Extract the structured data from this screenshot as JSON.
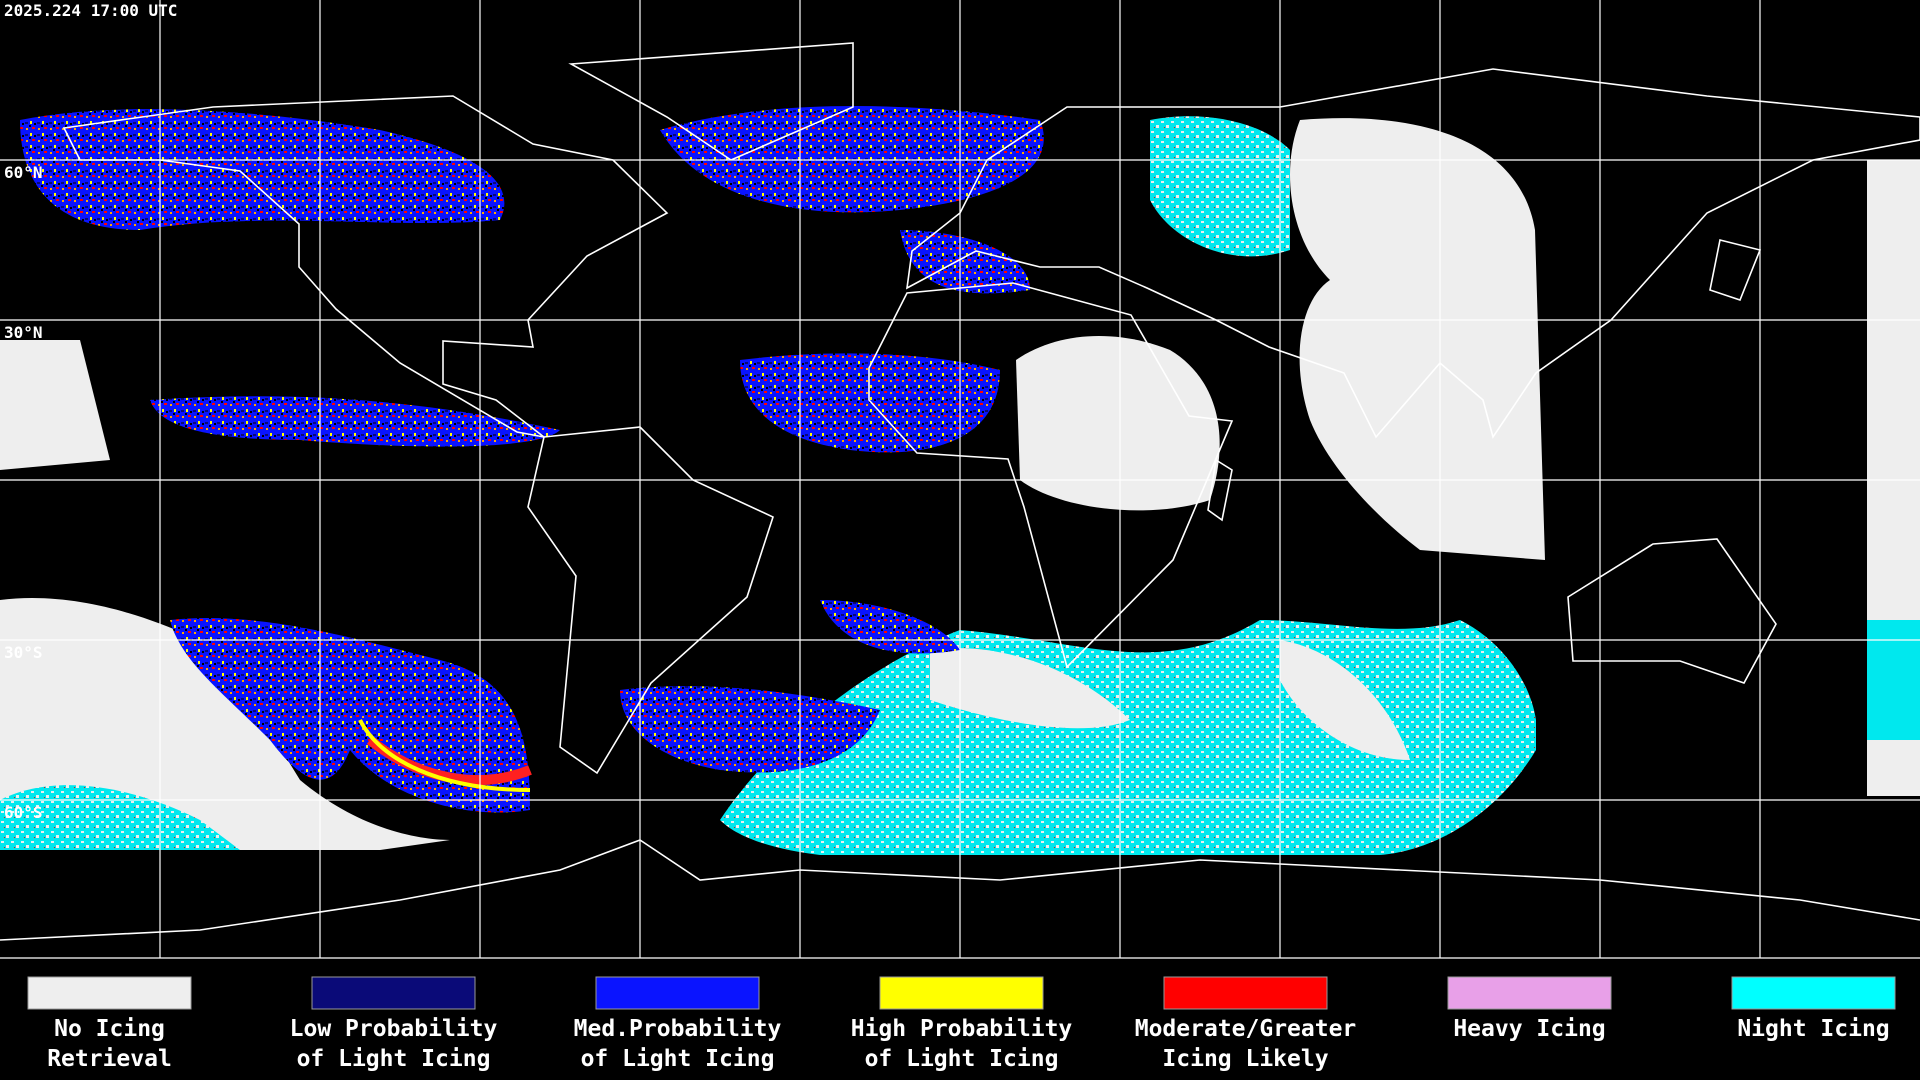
{
  "timestamp": "2025.224 17:00 UTC",
  "latitude_labels": [
    "60°N",
    "30°N",
    "30°S",
    "60°S"
  ],
  "legend": [
    {
      "label": [
        "No Icing",
        "Retrieval"
      ],
      "color": "#eeeeee"
    },
    {
      "label": [
        "Low Probability",
        "of Light Icing"
      ],
      "color": "#0a0a78"
    },
    {
      "label": [
        "Med.Probability",
        "of Light Icing"
      ],
      "color": "#0a14ff"
    },
    {
      "label": [
        "High Probability",
        "of Light Icing"
      ],
      "color": "#ffff00"
    },
    {
      "label": [
        "Moderate/Greater",
        "Icing Likely"
      ],
      "color": "#ff0000"
    },
    {
      "label": [
        "Heavy Icing"
      ],
      "color": "#e8a0e8"
    },
    {
      "label": [
        "Night Icing"
      ],
      "color": "#00ffff"
    }
  ]
}
